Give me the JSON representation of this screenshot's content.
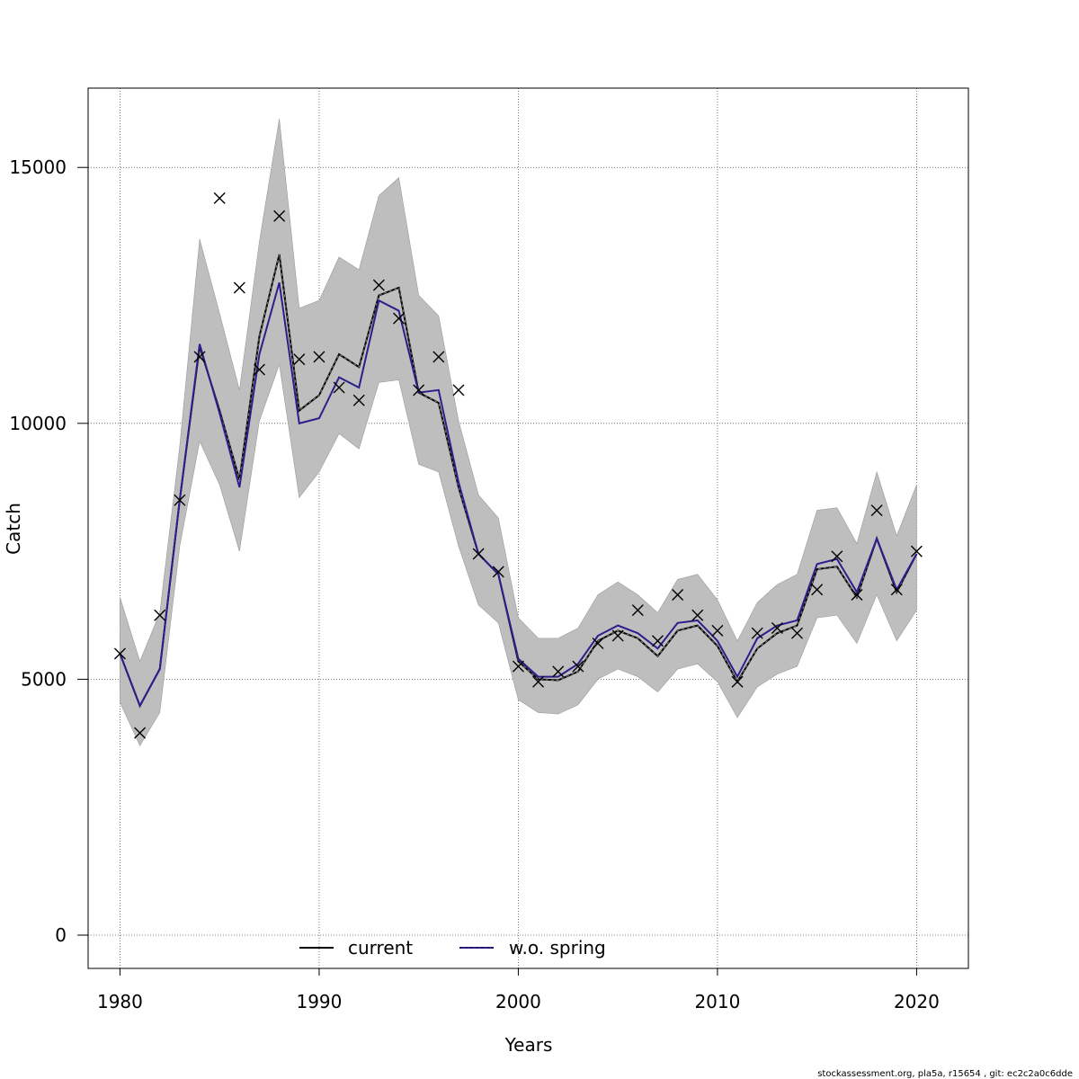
{
  "chart_data": {
    "type": "line",
    "xlabel": "Years",
    "ylabel": "Catch",
    "xlim": [
      1978.4,
      2022.6
    ],
    "ylim": [
      -650,
      16550
    ],
    "xticks": [
      1980,
      1990,
      2000,
      2010,
      2020
    ],
    "yticks": [
      0,
      5000,
      10000,
      15000
    ],
    "xtick_labels": [
      "1980",
      "1990",
      "2000",
      "2010",
      "2020"
    ],
    "ytick_labels": [
      "0",
      "5000",
      "10000",
      "15000"
    ],
    "grid": true,
    "legend_position": "bottom-center",
    "x": [
      1980,
      1981,
      1982,
      1983,
      1984,
      1985,
      1986,
      1987,
      1988,
      1989,
      1990,
      1991,
      1992,
      1993,
      1994,
      1995,
      1996,
      1997,
      1998,
      1999,
      2000,
      2001,
      2002,
      2003,
      2004,
      2005,
      2006,
      2007,
      2008,
      2009,
      2010,
      2011,
      2012,
      2013,
      2014,
      2015,
      2016,
      2017,
      2018,
      2019,
      2020
    ],
    "series": [
      {
        "name": "current",
        "color": "#000000",
        "values": [
          5500,
          4480,
          5200,
          8500,
          11500,
          10250,
          8900,
          11700,
          13300,
          10250,
          10550,
          11350,
          11100,
          12500,
          12650,
          10600,
          10400,
          8750,
          7450,
          7050,
          5350,
          5000,
          4980,
          5150,
          5750,
          5950,
          5800,
          5450,
          5950,
          6050,
          5650,
          4950,
          5600,
          5900,
          6050,
          7150,
          7200,
          6600,
          7750,
          6700,
          7450
        ]
      },
      {
        "name": "w.o. spring",
        "color": "#2b1f8c",
        "values": [
          5500,
          4480,
          5200,
          8500,
          11550,
          10200,
          8750,
          11350,
          12750,
          10000,
          10100,
          10900,
          10700,
          12400,
          12200,
          10600,
          10650,
          8850,
          7450,
          7050,
          5400,
          5050,
          5050,
          5300,
          5850,
          6050,
          5900,
          5600,
          6100,
          6150,
          5750,
          5050,
          5800,
          6050,
          6150,
          7250,
          7350,
          6700,
          7750,
          6750,
          7450
        ]
      }
    ],
    "confidence_band": {
      "color": "#bebebe",
      "lower": [
        4550,
        3700,
        4350,
        7600,
        9650,
        8800,
        7500,
        10050,
        11150,
        8550,
        9050,
        9800,
        9500,
        10800,
        10850,
        9200,
        9050,
        7600,
        6450,
        6100,
        4600,
        4350,
        4320,
        4500,
        5000,
        5200,
        5050,
        4750,
        5200,
        5300,
        4950,
        4250,
        4850,
        5100,
        5250,
        6200,
        6250,
        5700,
        6650,
        5750,
        6350
      ],
      "upper": [
        6600,
        5350,
        6300,
        9550,
        13600,
        12150,
        10650,
        13550,
        15950,
        12250,
        12400,
        13250,
        13000,
        14450,
        14800,
        12500,
        12100,
        10050,
        8600,
        8150,
        6200,
        5800,
        5800,
        6000,
        6650,
        6900,
        6650,
        6300,
        6950,
        7050,
        6550,
        5750,
        6500,
        6850,
        7050,
        8300,
        8350,
        7650,
        9050,
        7800,
        8800
      ]
    },
    "observed": {
      "marker": "x",
      "x": [
        1980,
        1981,
        1982,
        1983,
        1984,
        1985,
        1986,
        1987,
        1988,
        1989,
        1990,
        1991,
        1992,
        1993,
        1994,
        1995,
        1996,
        1997,
        1998,
        1999,
        2000,
        2001,
        2002,
        2003,
        2004,
        2005,
        2006,
        2007,
        2008,
        2009,
        2010,
        2011,
        2012,
        2013,
        2014,
        2015,
        2016,
        2017,
        2018,
        2019,
        2020
      ],
      "values": [
        5500,
        3950,
        6250,
        8500,
        11300,
        14400,
        12650,
        11050,
        14050,
        11250,
        11300,
        10700,
        10450,
        12700,
        12050,
        10650,
        11300,
        10650,
        7450,
        7100,
        5250,
        4950,
        5150,
        5250,
        5700,
        5850,
        6350,
        5750,
        6650,
        6250,
        5950,
        4950,
        5900,
        6000,
        5900,
        6750,
        7400,
        6650,
        8300,
        6750,
        7500
      ]
    },
    "legend": [
      "current",
      "w.o. spring"
    ]
  },
  "footer_text": "stockassessment.org, pla5a, r15654 , git: ec2c2a0c6dde"
}
